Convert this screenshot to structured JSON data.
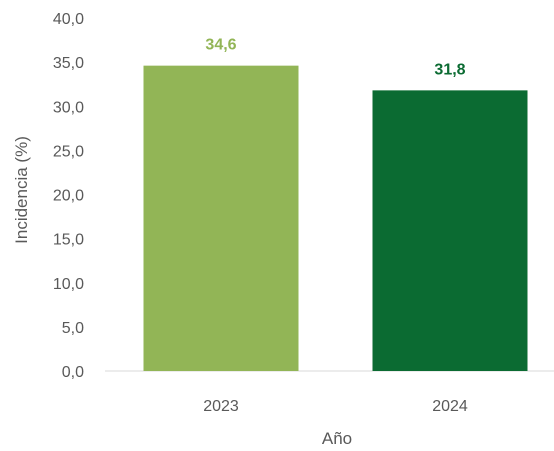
{
  "chart_data": {
    "type": "bar",
    "categories": [
      "2023",
      "2024"
    ],
    "values": [
      34.6,
      31.8
    ],
    "value_labels": [
      "34,6",
      "31,8"
    ],
    "colors": [
      "#92b556",
      "#0b6b32"
    ],
    "xlabel": "Año",
    "ylabel": "Incidencia (%)",
    "ylim": [
      0,
      40
    ],
    "yticks": [
      "0,0",
      "5,0",
      "10,0",
      "15,0",
      "20,0",
      "25,0",
      "30,0",
      "35,0",
      "40,0"
    ],
    "grid": false,
    "legend": "none"
  }
}
